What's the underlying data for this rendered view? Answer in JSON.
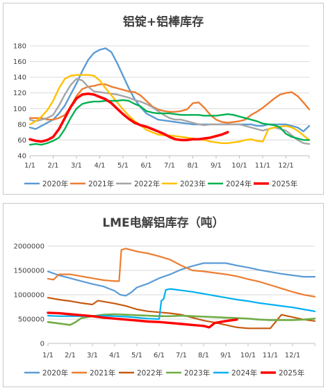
{
  "chart_data": [
    {
      "type": "line",
      "title": "铝锭+铝棒库存",
      "xlabel": "",
      "ylabel": "",
      "categories": [
        "1/1",
        "2/1",
        "3/1",
        "4/1",
        "5/1",
        "6/1",
        "7/1",
        "8/1",
        "9/1",
        "10/1",
        "11/1",
        "12/1"
      ],
      "ylim": [
        40,
        180
      ],
      "yticks": [
        40,
        60,
        80,
        100,
        120,
        140,
        160,
        180
      ],
      "grid": true,
      "legend": "bottom",
      "series": [
        {
          "name": "2020年",
          "color": "#5b9bd5",
          "x": [
            0,
            0.25,
            0.5,
            0.75,
            1,
            1.25,
            1.5,
            1.75,
            2,
            2.25,
            2.5,
            2.75,
            3,
            3.25,
            3.5,
            3.75,
            4,
            4.25,
            4.5,
            4.75,
            5,
            5.25,
            5.5,
            5.75,
            6,
            6.25,
            6.5,
            6.75,
            7,
            7.25,
            7.5,
            7.75,
            8,
            8.25,
            8.5,
            8.75,
            9,
            9.25,
            9.5,
            9.75,
            10,
            10.25,
            10.5,
            10.75,
            11,
            11.25,
            11.5,
            11.75,
            12
          ],
          "values": [
            76,
            74,
            78,
            82,
            86,
            94,
            104,
            118,
            132,
            148,
            162,
            171,
            175,
            177,
            172,
            158,
            142,
            126,
            112,
            102,
            94,
            90,
            86,
            85,
            84,
            83,
            82,
            81,
            80,
            80,
            80,
            80,
            80,
            80,
            80,
            80,
            80,
            80,
            80,
            78,
            78,
            80,
            80,
            80,
            80,
            78,
            76,
            71,
            78
          ]
        },
        {
          "name": "2021年",
          "color": "#ed7d31",
          "x": [
            0,
            0.25,
            0.5,
            0.75,
            1,
            1.25,
            1.5,
            1.75,
            2,
            2.25,
            2.5,
            2.75,
            3,
            3.25,
            3.5,
            3.75,
            4,
            4.25,
            4.5,
            4.75,
            5,
            5.25,
            5.5,
            5.75,
            6,
            6.25,
            6.5,
            6.75,
            7,
            7.25,
            7.5,
            7.75,
            8,
            8.25,
            8.5,
            8.75,
            9,
            9.25,
            9.5,
            9.75,
            10,
            10.25,
            10.5,
            10.75,
            11,
            11.25,
            11.5,
            11.75,
            12
          ],
          "values": [
            88,
            88,
            88,
            86,
            86,
            88,
            92,
            102,
            116,
            125,
            128,
            129,
            131,
            131,
            128,
            126,
            124,
            122,
            121,
            117,
            110,
            103,
            99,
            97,
            96,
            96,
            97,
            99,
            107,
            108,
            101,
            92,
            86,
            83,
            82,
            83,
            84,
            86,
            92,
            96,
            101,
            107,
            113,
            118,
            120,
            121,
            116,
            108,
            99
          ]
        },
        {
          "name": "2022年",
          "color": "#a5a5a5",
          "x": [
            0,
            0.25,
            0.5,
            0.75,
            1,
            1.25,
            1.5,
            1.75,
            2,
            2.25,
            2.5,
            2.75,
            3,
            3.25,
            3.5,
            3.75,
            4,
            4.25,
            4.5,
            4.75,
            5,
            5.25,
            5.5,
            5.75,
            6,
            6.25,
            6.5,
            6.75,
            7,
            7.25,
            7.5,
            7.75,
            8,
            8.25,
            8.5,
            8.75,
            9,
            9.25,
            9.5,
            9.75,
            10,
            10.25,
            10.5,
            10.75,
            11,
            11.25,
            11.5,
            11.75,
            12
          ],
          "values": [
            86,
            84,
            86,
            88,
            92,
            104,
            118,
            130,
            138,
            136,
            128,
            122,
            121,
            120,
            119,
            118,
            116,
            114,
            111,
            109,
            106,
            102,
            97,
            92,
            88,
            86,
            86,
            84,
            82,
            80,
            79,
            80,
            80,
            80,
            80,
            80,
            80,
            78,
            76,
            74,
            72,
            74,
            76,
            74,
            72,
            66,
            60,
            56,
            55
          ]
        },
        {
          "name": "2023年",
          "color": "#ffc000",
          "x": [
            0,
            0.25,
            0.5,
            0.75,
            1,
            1.25,
            1.5,
            1.75,
            2,
            2.25,
            2.5,
            2.75,
            3,
            3.25,
            3.5,
            3.75,
            4,
            4.25,
            4.5,
            4.75,
            5,
            5.25,
            5.5,
            5.75,
            6,
            6.25,
            6.5,
            6.75,
            7,
            7.25,
            7.5,
            7.75,
            8,
            8.25,
            8.5,
            8.75,
            9,
            9.25,
            9.5,
            9.75,
            10,
            10.25,
            10.5,
            10.75,
            11,
            11.25,
            11.5,
            11.75,
            12
          ],
          "values": [
            80,
            84,
            90,
            98,
            110,
            126,
            138,
            142,
            143,
            143,
            143,
            142,
            136,
            126,
            117,
            108,
            99,
            91,
            84,
            79,
            73,
            70,
            67,
            66,
            66,
            65,
            64,
            63,
            62,
            61,
            60,
            58,
            57,
            56,
            56,
            57,
            58,
            60,
            61,
            59,
            58,
            74,
            76,
            77,
            78,
            76,
            72,
            66,
            60
          ]
        },
        {
          "name": "2024年",
          "color": "#00b050",
          "x": [
            0,
            0.25,
            0.5,
            0.75,
            1,
            1.25,
            1.5,
            1.75,
            2,
            2.25,
            2.5,
            2.75,
            3,
            3.25,
            3.5,
            3.75,
            4,
            4.25,
            4.5,
            4.75,
            5,
            5.25,
            5.5,
            5.75,
            6,
            6.25,
            6.5,
            6.75,
            7,
            7.25,
            7.5,
            7.75,
            8,
            8.25,
            8.5,
            8.75,
            9,
            9.25,
            9.5,
            9.75,
            10,
            10.25,
            10.5,
            10.75,
            11,
            11.25,
            11.5,
            11.75,
            12
          ],
          "values": [
            54,
            55,
            54,
            56,
            59,
            63,
            74,
            88,
            100,
            106,
            108,
            109,
            109,
            110,
            110,
            110,
            111,
            110,
            106,
            103,
            97,
            95,
            94,
            94,
            94,
            93,
            92,
            92,
            92,
            92,
            91,
            91,
            91,
            92,
            93,
            92,
            90,
            88,
            86,
            84,
            81,
            80,
            79,
            76,
            68,
            64,
            62,
            60,
            60
          ]
        },
        {
          "name": "2025年",
          "color": "#ff0000",
          "x": [
            0,
            0.25,
            0.5,
            0.75,
            1,
            1.25,
            1.5,
            1.75,
            2,
            2.25,
            2.5,
            2.75,
            3,
            3.25,
            3.5,
            3.75,
            4,
            4.25,
            4.5,
            4.75,
            5,
            5.25,
            5.5,
            5.75,
            6,
            6.25,
            6.5,
            6.75,
            7,
            7.25,
            7.5,
            7.75,
            8,
            8.25,
            8.5
          ],
          "values": [
            61,
            59,
            58,
            60,
            64,
            74,
            88,
            102,
            113,
            118,
            119,
            118,
            115,
            112,
            107,
            100,
            93,
            87,
            82,
            79,
            77,
            74,
            71,
            68,
            64,
            61,
            60,
            60,
            61,
            61,
            62,
            63,
            65,
            67,
            70
          ]
        }
      ]
    },
    {
      "type": "line",
      "title": "LME电解铝库存（吨）",
      "xlabel": "",
      "ylabel": "",
      "categories": [
        "1/1",
        "2/1",
        "3/1",
        "4/1",
        "5/1",
        "6/1",
        "7/1",
        "8/1",
        "9/1",
        "10/1",
        "11/1",
        "12/1"
      ],
      "ylim": [
        0,
        2000000
      ],
      "yticks": [
        0,
        500000,
        1000000,
        1500000,
        2000000
      ],
      "grid": true,
      "legend": "bottom",
      "series": [
        {
          "name": "2020年",
          "color": "#5b9bd5",
          "x": [
            0,
            0.5,
            1,
            1.5,
            2,
            2.5,
            3,
            3.25,
            3.5,
            3.75,
            4,
            4.5,
            5,
            5.5,
            6,
            6.5,
            7,
            7.5,
            8,
            8.5,
            9,
            9.5,
            10,
            10.5,
            11,
            11.5,
            12
          ],
          "values": [
            1480000,
            1400000,
            1340000,
            1280000,
            1220000,
            1170000,
            1080000,
            1000000,
            980000,
            1050000,
            1150000,
            1230000,
            1340000,
            1420000,
            1520000,
            1590000,
            1650000,
            1650000,
            1650000,
            1600000,
            1560000,
            1510000,
            1470000,
            1430000,
            1400000,
            1370000,
            1370000
          ]
        },
        {
          "name": "2021年",
          "color": "#ed7d31",
          "x": [
            0,
            0.25,
            0.5,
            1,
            1.5,
            2,
            2.5,
            3,
            3.2,
            3.3,
            3.5,
            4,
            4.5,
            5,
            5.5,
            6,
            6.5,
            7,
            7.5,
            8,
            8.5,
            9,
            9.5,
            10,
            10.5,
            11,
            11.5,
            12
          ],
          "values": [
            1330000,
            1310000,
            1420000,
            1420000,
            1380000,
            1340000,
            1300000,
            1280000,
            1280000,
            1920000,
            1950000,
            1890000,
            1850000,
            1790000,
            1720000,
            1600000,
            1500000,
            1480000,
            1450000,
            1420000,
            1380000,
            1320000,
            1270000,
            1200000,
            1130000,
            1060000,
            1000000,
            960000
          ]
        },
        {
          "name": "2022年",
          "color": "#c55a11",
          "x": [
            0,
            0.5,
            1,
            1.5,
            2,
            2.25,
            2.5,
            3,
            3.5,
            4,
            4.5,
            5,
            5.5,
            6,
            6.5,
            7,
            7.5,
            8,
            8.5,
            9,
            9.5,
            10,
            10.5,
            11,
            11.5,
            12
          ],
          "values": [
            940000,
            900000,
            870000,
            830000,
            800000,
            880000,
            860000,
            820000,
            770000,
            700000,
            660000,
            640000,
            620000,
            590000,
            530000,
            470000,
            430000,
            380000,
            330000,
            310000,
            310000,
            310000,
            590000,
            540000,
            490000,
            460000
          ]
        },
        {
          "name": "2023年",
          "color": "#70ad47",
          "x": [
            0,
            0.5,
            1,
            1.25,
            1.5,
            2,
            2.5,
            3,
            3.5,
            4,
            4.5,
            5,
            5.5,
            6,
            6.5,
            7,
            7.5,
            8,
            8.5,
            9,
            9.5,
            10,
            10.5,
            11,
            11.5,
            12
          ],
          "values": [
            440000,
            410000,
            380000,
            440000,
            520000,
            560000,
            590000,
            600000,
            590000,
            580000,
            570000,
            560000,
            560000,
            570000,
            560000,
            550000,
            540000,
            530000,
            520000,
            510000,
            490000,
            480000,
            480000,
            480000,
            490000,
            510000
          ]
        },
        {
          "name": "2024年",
          "color": "#00b0f0",
          "x": [
            0,
            0.5,
            1,
            1.5,
            2,
            2.5,
            3,
            3.5,
            4,
            4.5,
            5,
            5.1,
            5.2,
            5.3,
            5.5,
            6,
            6.5,
            7,
            7.5,
            8,
            8.5,
            9,
            9.5,
            10,
            10.5,
            11,
            11.5,
            12
          ],
          "values": [
            570000,
            560000,
            560000,
            560000,
            560000,
            570000,
            560000,
            550000,
            530000,
            510000,
            500000,
            880000,
            910000,
            1100000,
            1120000,
            1090000,
            1060000,
            1020000,
            980000,
            940000,
            900000,
            870000,
            830000,
            800000,
            770000,
            740000,
            700000,
            660000
          ]
        },
        {
          "name": "2025年",
          "color": "#ff0000",
          "x": [
            0,
            0.5,
            1,
            1.5,
            2,
            2.5,
            3,
            3.5,
            4,
            4.5,
            5,
            5.5,
            6,
            6.5,
            7,
            7.25,
            7.5,
            8,
            8.5
          ],
          "values": [
            630000,
            620000,
            600000,
            580000,
            560000,
            530000,
            510000,
            490000,
            470000,
            450000,
            440000,
            420000,
            400000,
            380000,
            360000,
            330000,
            420000,
            460000,
            490000
          ]
        }
      ]
    }
  ]
}
